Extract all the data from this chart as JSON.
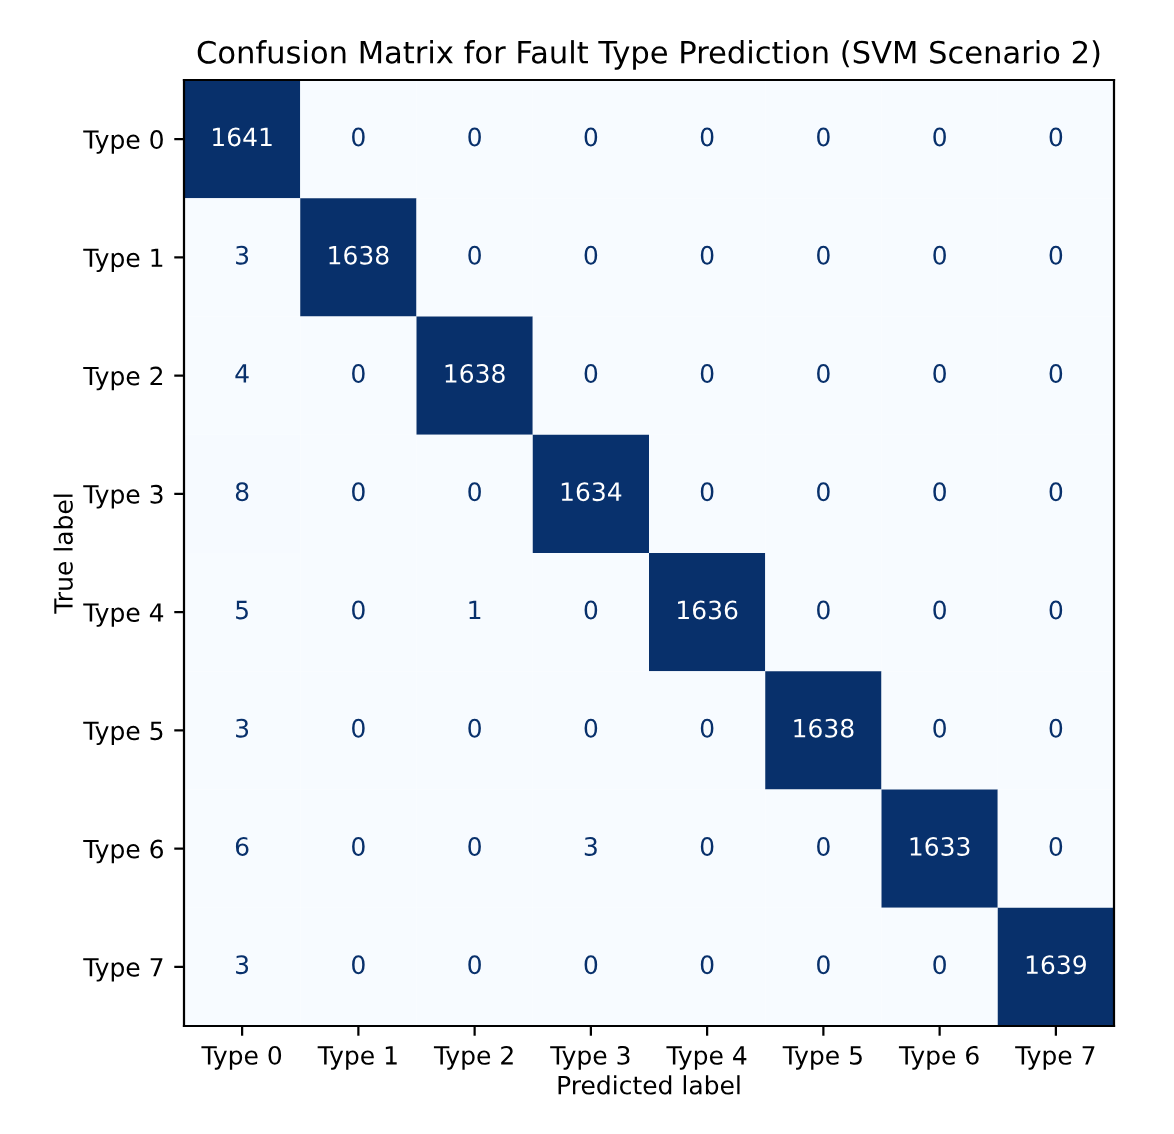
{
  "chart_data": {
    "type": "heatmap",
    "title": "Confusion Matrix for Fault Type Prediction (SVM Scenario 2)",
    "xlabel": "Predicted label",
    "ylabel": "True label",
    "categories": [
      "Type 0",
      "Type 1",
      "Type 2",
      "Type 3",
      "Type 4",
      "Type 5",
      "Type 6",
      "Type 7"
    ],
    "y_categories": [
      "Type 0",
      "Type 1",
      "Type 2",
      "Type 3",
      "Type 4",
      "Type 5",
      "Type 6",
      "Type 7"
    ],
    "cells": [
      [
        1641,
        0,
        0,
        0,
        0,
        0,
        0,
        0
      ],
      [
        3,
        1638,
        0,
        0,
        0,
        0,
        0,
        0
      ],
      [
        4,
        0,
        1638,
        0,
        0,
        0,
        0,
        0
      ],
      [
        8,
        0,
        0,
        1634,
        0,
        0,
        0,
        0
      ],
      [
        5,
        0,
        1,
        0,
        1636,
        0,
        0,
        0
      ],
      [
        3,
        0,
        0,
        0,
        0,
        1638,
        0,
        0
      ],
      [
        6,
        0,
        0,
        3,
        0,
        0,
        1633,
        0
      ],
      [
        3,
        0,
        0,
        0,
        0,
        0,
        0,
        1639
      ]
    ],
    "data_labels": true
  }
}
